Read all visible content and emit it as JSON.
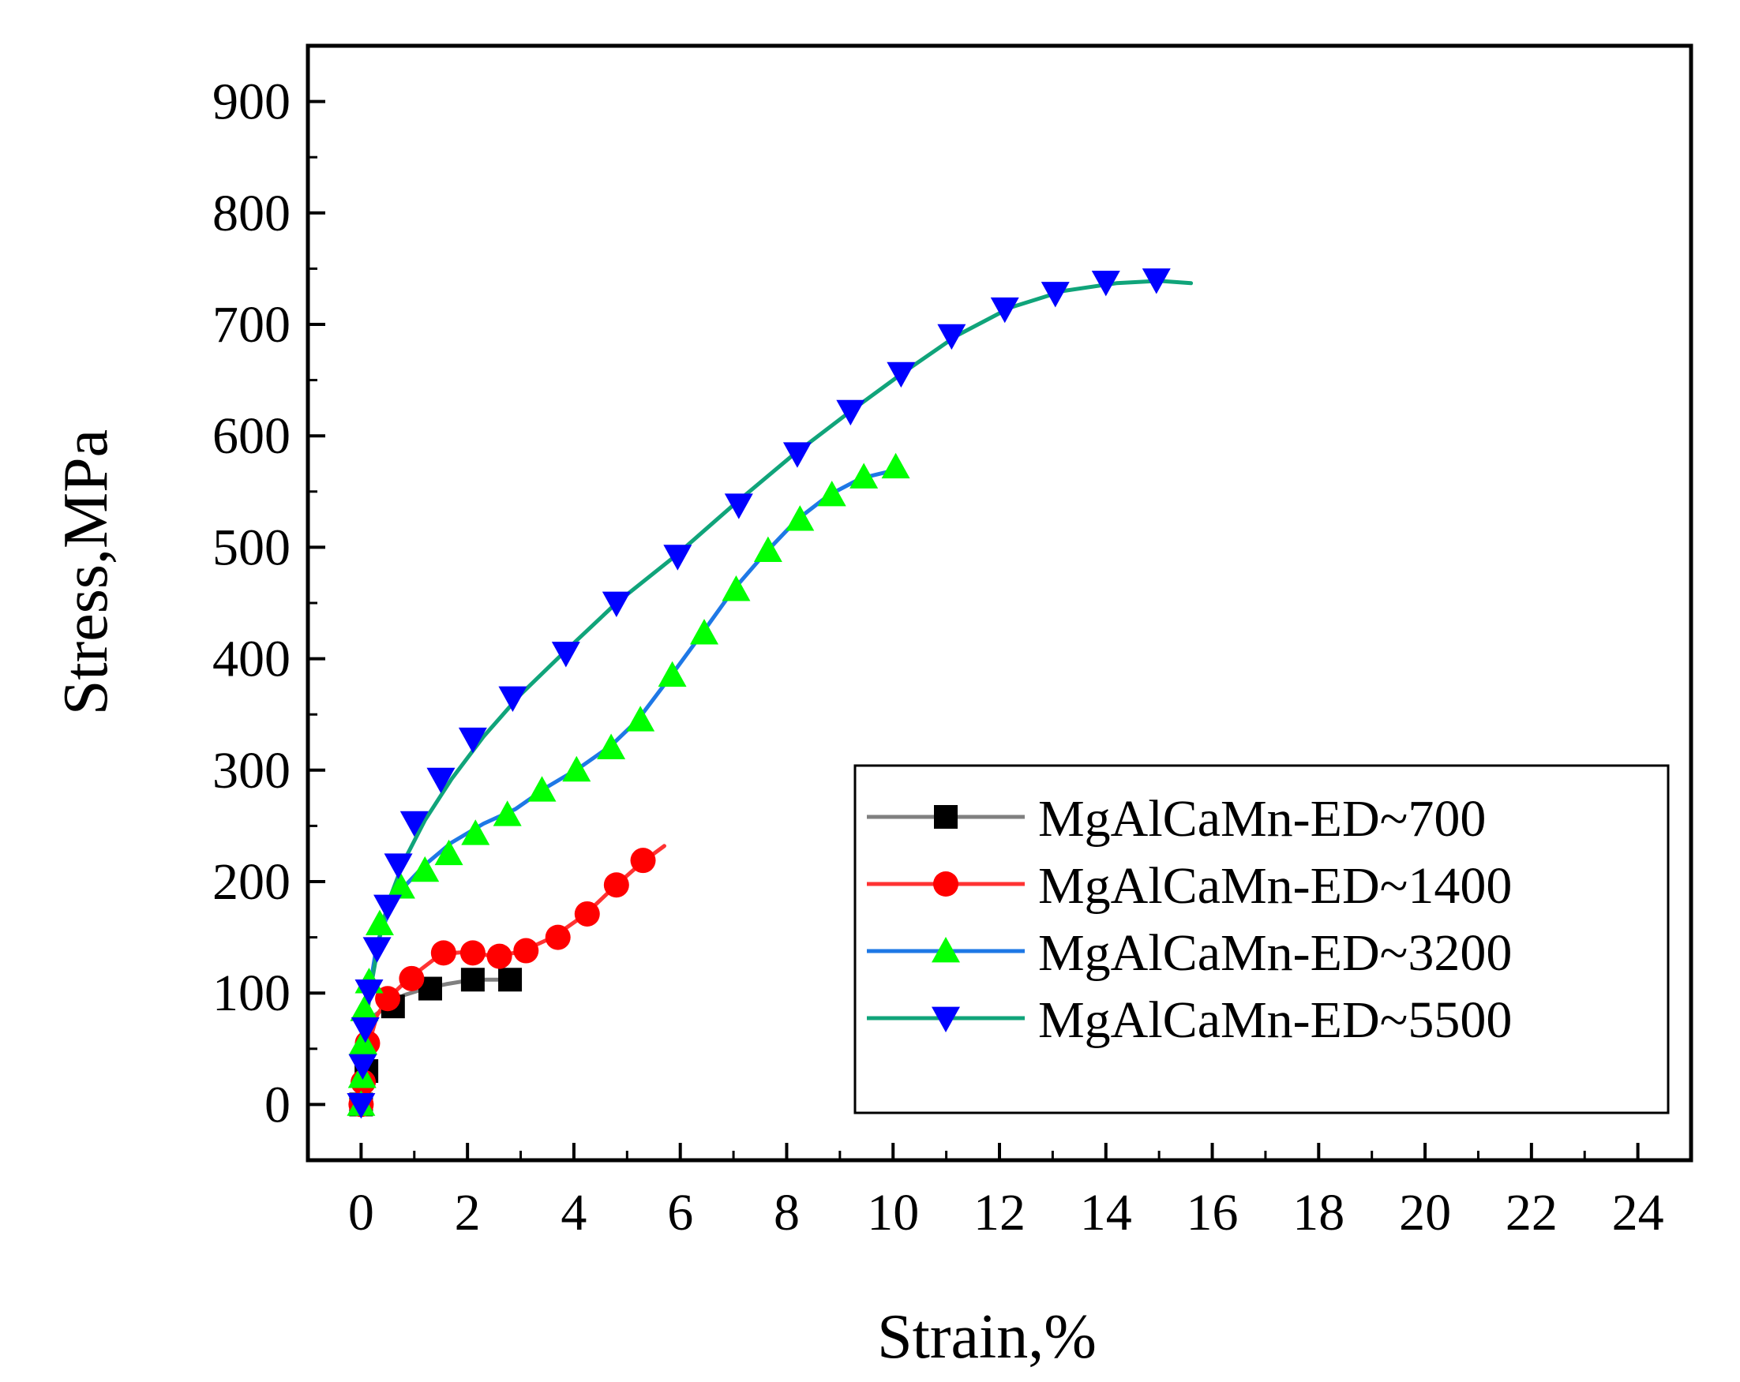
{
  "chart_data": {
    "type": "line",
    "title": "",
    "xlabel": "Strain,%",
    "ylabel": "Stress,MPa",
    "xlim": [
      -1,
      25
    ],
    "ylim": [
      -50,
      950
    ],
    "x_ticks": [
      0,
      2,
      4,
      6,
      8,
      10,
      12,
      14,
      16,
      18,
      20,
      22,
      24
    ],
    "x_tick_labels": [
      "0",
      "2",
      "4",
      "6",
      "8",
      "10",
      "12",
      "14",
      "16",
      "18",
      "20",
      "22",
      "24"
    ],
    "y_ticks": [
      0,
      100,
      200,
      300,
      400,
      500,
      600,
      700,
      800,
      900
    ],
    "y_tick_labels": [
      "0",
      "100",
      "200",
      "300",
      "400",
      "500",
      "600",
      "700",
      "800",
      "900"
    ],
    "grid": false,
    "legend_position": "bottom-right",
    "series": [
      {
        "name": "MgAlCaMn-ED~700",
        "color": "#808080",
        "marker": "square",
        "marker_color": "#000000",
        "line": [
          [
            -0.05,
            0
          ],
          [
            0.05,
            30
          ],
          [
            0.12,
            60
          ],
          [
            0.25,
            80
          ],
          [
            0.5,
            88
          ],
          [
            0.8,
            98
          ],
          [
            1.2,
            104
          ],
          [
            1.6,
            108
          ],
          [
            2.1,
            112
          ],
          [
            2.5,
            112
          ],
          [
            2.9,
            112
          ]
        ],
        "markers": [
          [
            0,
            0
          ],
          [
            0.1,
            30
          ],
          [
            0.6,
            88
          ],
          [
            1.3,
            104
          ],
          [
            2.1,
            112
          ],
          [
            2.8,
            112
          ]
        ]
      },
      {
        "name": "MgAlCaMn-ED~1400",
        "color": "#ff3333",
        "marker": "circle",
        "marker_color": "#ff0000",
        "line": [
          [
            -0.05,
            0
          ],
          [
            0.05,
            20
          ],
          [
            0.15,
            55
          ],
          [
            0.3,
            80
          ],
          [
            0.5,
            95
          ],
          [
            0.9,
            113
          ],
          [
            1.5,
            135
          ],
          [
            2.0,
            137
          ],
          [
            2.5,
            133
          ],
          [
            3.0,
            137
          ],
          [
            3.6,
            150
          ],
          [
            4.2,
            170
          ],
          [
            4.8,
            197
          ],
          [
            5.3,
            218
          ],
          [
            5.7,
            232
          ]
        ],
        "markers": [
          [
            0,
            0
          ],
          [
            0.04,
            20
          ],
          [
            0.12,
            55
          ],
          [
            0.5,
            95
          ],
          [
            0.95,
            113
          ],
          [
            1.55,
            136
          ],
          [
            2.1,
            136
          ],
          [
            2.6,
            133
          ],
          [
            3.1,
            138
          ],
          [
            3.7,
            150
          ],
          [
            4.25,
            171
          ],
          [
            4.8,
            197
          ],
          [
            5.3,
            219
          ]
        ]
      },
      {
        "name": "MgAlCaMn-ED~3200",
        "color": "#1e78e6",
        "marker": "triangle-up",
        "marker_color": "#00ff00",
        "line": [
          [
            -0.05,
            0
          ],
          [
            0.05,
            50
          ],
          [
            0.15,
            100
          ],
          [
            0.3,
            145
          ],
          [
            0.5,
            170
          ],
          [
            0.8,
            195
          ],
          [
            1.2,
            215
          ],
          [
            1.7,
            235
          ],
          [
            2.3,
            252
          ],
          [
            2.9,
            265
          ],
          [
            3.5,
            285
          ],
          [
            4.1,
            302
          ],
          [
            4.7,
            322
          ],
          [
            5.2,
            345
          ],
          [
            5.8,
            383
          ],
          [
            6.4,
            422
          ],
          [
            7.0,
            462
          ],
          [
            7.6,
            495
          ],
          [
            8.2,
            525
          ],
          [
            8.8,
            547
          ],
          [
            9.4,
            562
          ],
          [
            10.1,
            570
          ]
        ],
        "markers": [
          [
            0,
            0
          ],
          [
            0.02,
            25
          ],
          [
            0.04,
            55
          ],
          [
            0.06,
            85
          ],
          [
            0.15,
            110
          ],
          [
            0.35,
            162
          ],
          [
            0.75,
            195
          ],
          [
            1.2,
            210
          ],
          [
            1.65,
            225
          ],
          [
            2.15,
            243
          ],
          [
            2.75,
            260
          ],
          [
            3.4,
            282
          ],
          [
            4.05,
            300
          ],
          [
            4.7,
            320
          ],
          [
            5.25,
            345
          ],
          [
            5.85,
            385
          ],
          [
            6.45,
            423
          ],
          [
            7.05,
            462
          ],
          [
            7.65,
            497
          ],
          [
            8.25,
            525
          ],
          [
            8.85,
            547
          ],
          [
            9.45,
            563
          ],
          [
            10.05,
            572
          ]
        ]
      },
      {
        "name": "MgAlCaMn-ED~5500",
        "color": "#10a47a",
        "marker": "triangle-down",
        "marker_color": "#0000ff",
        "line": [
          [
            -0.05,
            0
          ],
          [
            0.03,
            40
          ],
          [
            0.08,
            70
          ],
          [
            0.2,
            110
          ],
          [
            0.35,
            150
          ],
          [
            0.5,
            180
          ],
          [
            0.8,
            218
          ],
          [
            1.2,
            255
          ],
          [
            1.7,
            292
          ],
          [
            2.3,
            330
          ],
          [
            3.0,
            368
          ],
          [
            3.8,
            405
          ],
          [
            4.8,
            450
          ],
          [
            5.9,
            492
          ],
          [
            7.0,
            538
          ],
          [
            8.1,
            582
          ],
          [
            9.2,
            622
          ],
          [
            10.2,
            657
          ],
          [
            11.2,
            690
          ],
          [
            12.2,
            715
          ],
          [
            13.2,
            730
          ],
          [
            14.2,
            737
          ],
          [
            15.0,
            739
          ],
          [
            15.6,
            737
          ]
        ],
        "markers": [
          [
            0,
            0
          ],
          [
            0.03,
            35
          ],
          [
            0.08,
            68
          ],
          [
            0.15,
            102
          ],
          [
            0.3,
            140
          ],
          [
            0.5,
            178
          ],
          [
            0.7,
            215
          ],
          [
            1.0,
            253
          ],
          [
            1.5,
            292
          ],
          [
            2.1,
            328
          ],
          [
            2.85,
            365
          ],
          [
            3.85,
            405
          ],
          [
            4.8,
            450
          ],
          [
            5.95,
            492
          ],
          [
            7.1,
            538
          ],
          [
            8.2,
            584
          ],
          [
            9.2,
            622
          ],
          [
            10.15,
            656
          ],
          [
            11.1,
            690
          ],
          [
            12.1,
            714
          ],
          [
            13.05,
            728
          ],
          [
            14.0,
            738
          ],
          [
            14.95,
            740
          ]
        ]
      }
    ]
  }
}
